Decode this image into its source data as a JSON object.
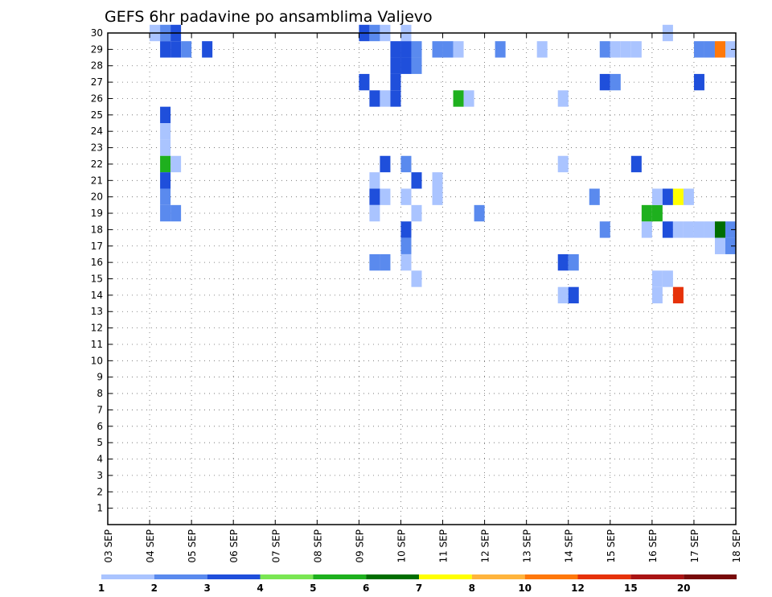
{
  "chart_data": {
    "type": "heatmap",
    "title": "GEFS 6hr padavine po ansamblima Valjevo",
    "xlabel": "",
    "ylabel": "",
    "x_tick_labels": [
      "03 SEP",
      "04 SEP",
      "05 SEP",
      "06 SEP",
      "07 SEP",
      "08 SEP",
      "09 SEP",
      "10 SEP",
      "11 SEP",
      "12 SEP",
      "13 SEP",
      "14 SEP",
      "15 SEP",
      "16 SEP",
      "17 SEP",
      "18 SEP"
    ],
    "x_range_days": [
      3,
      18
    ],
    "x_step": "6hr",
    "y_tick_labels": [
      "1",
      "2",
      "3",
      "4",
      "5",
      "6",
      "7",
      "8",
      "9",
      "10",
      "11",
      "12",
      "13",
      "14",
      "15",
      "16",
      "17",
      "18",
      "19",
      "20",
      "21",
      "22",
      "23",
      "24",
      "25",
      "26",
      "27",
      "28",
      "29",
      "30"
    ],
    "y_range": [
      0,
      30
    ],
    "grid": true,
    "colorbar": {
      "labels": [
        "1",
        "2",
        "3",
        "4",
        "5",
        "6",
        "7",
        "8",
        "10",
        "12",
        "15",
        "20"
      ],
      "colors": [
        "#aac4ff",
        "#5a8aee",
        "#1f4fdb",
        "#7ae653",
        "#1eb01e",
        "#006e00",
        "#ffff00",
        "#ffb43c",
        "#ff780a",
        "#e6320a",
        "#aa1414",
        "#780a0a"
      ]
    },
    "cells": [
      {
        "day": 4.125,
        "member": 30,
        "level": 1
      },
      {
        "day": 4.375,
        "member": 30,
        "level": 2
      },
      {
        "day": 4.625,
        "member": 30,
        "level": 3
      },
      {
        "day": 9.125,
        "member": 30,
        "level": 3
      },
      {
        "day": 9.375,
        "member": 30,
        "level": 2
      },
      {
        "day": 9.625,
        "member": 30,
        "level": 1
      },
      {
        "day": 10.125,
        "member": 30,
        "level": 1
      },
      {
        "day": 16.375,
        "member": 30,
        "level": 1
      },
      {
        "day": 4.375,
        "member": 29,
        "level": 3
      },
      {
        "day": 4.625,
        "member": 29,
        "level": 3
      },
      {
        "day": 4.875,
        "member": 29,
        "level": 2
      },
      {
        "day": 5.375,
        "member": 29,
        "level": 3
      },
      {
        "day": 9.875,
        "member": 29,
        "level": 3
      },
      {
        "day": 10.125,
        "member": 29,
        "level": 3
      },
      {
        "day": 10.375,
        "member": 29,
        "level": 2
      },
      {
        "day": 10.875,
        "member": 29,
        "level": 2
      },
      {
        "day": 11.125,
        "member": 29,
        "level": 2
      },
      {
        "day": 11.375,
        "member": 29,
        "level": 1
      },
      {
        "day": 12.375,
        "member": 29,
        "level": 2
      },
      {
        "day": 13.375,
        "member": 29,
        "level": 1
      },
      {
        "day": 14.875,
        "member": 29,
        "level": 2
      },
      {
        "day": 15.125,
        "member": 29,
        "level": 1
      },
      {
        "day": 15.375,
        "member": 29,
        "level": 1
      },
      {
        "day": 15.625,
        "member": 29,
        "level": 1
      },
      {
        "day": 17.125,
        "member": 29,
        "level": 2
      },
      {
        "day": 17.375,
        "member": 29,
        "level": 2
      },
      {
        "day": 17.625,
        "member": 29,
        "level": 9
      },
      {
        "day": 17.875,
        "member": 29,
        "level": 1
      },
      {
        "day": 9.875,
        "member": 28,
        "level": 3
      },
      {
        "day": 10.125,
        "member": 28,
        "level": 3
      },
      {
        "day": 10.375,
        "member": 28,
        "level": 2
      },
      {
        "day": 9.125,
        "member": 27,
        "level": 3
      },
      {
        "day": 9.875,
        "member": 27,
        "level": 3
      },
      {
        "day": 14.875,
        "member": 27,
        "level": 3
      },
      {
        "day": 15.125,
        "member": 27,
        "level": 2
      },
      {
        "day": 17.125,
        "member": 27,
        "level": 3
      },
      {
        "day": 9.375,
        "member": 26,
        "level": 3
      },
      {
        "day": 9.625,
        "member": 26,
        "level": 1
      },
      {
        "day": 9.875,
        "member": 26,
        "level": 3
      },
      {
        "day": 11.375,
        "member": 26,
        "level": 5
      },
      {
        "day": 11.625,
        "member": 26,
        "level": 1
      },
      {
        "day": 13.875,
        "member": 26,
        "level": 1
      },
      {
        "day": 4.375,
        "member": 25,
        "level": 3
      },
      {
        "day": 4.375,
        "member": 24,
        "level": 1
      },
      {
        "day": 4.375,
        "member": 23,
        "level": 1
      },
      {
        "day": 4.375,
        "member": 22,
        "level": 5
      },
      {
        "day": 4.625,
        "member": 22,
        "level": 1
      },
      {
        "day": 13.875,
        "member": 22,
        "level": 1
      },
      {
        "day": 9.625,
        "member": 22,
        "level": 3
      },
      {
        "day": 10.125,
        "member": 22,
        "level": 2
      },
      {
        "day": 15.625,
        "member": 22,
        "level": 3
      },
      {
        "day": 4.375,
        "member": 21,
        "level": 3
      },
      {
        "day": 4.375,
        "member": 20,
        "level": 2
      },
      {
        "day": 9.375,
        "member": 21,
        "level": 1
      },
      {
        "day": 10.375,
        "member": 21,
        "level": 3
      },
      {
        "day": 10.875,
        "member": 21,
        "level": 1
      },
      {
        "day": 10.875,
        "member": 20,
        "level": 1
      },
      {
        "day": 9.375,
        "member": 20,
        "level": 3
      },
      {
        "day": 9.625,
        "member": 20,
        "level": 1
      },
      {
        "day": 10.125,
        "member": 20,
        "level": 1
      },
      {
        "day": 10.125,
        "member": 18,
        "level": 3
      },
      {
        "day": 10.125,
        "member": 17,
        "level": 2
      },
      {
        "day": 10.125,
        "member": 16,
        "level": 1
      },
      {
        "day": 13.875,
        "member": 16,
        "level": 3
      },
      {
        "day": 14.125,
        "member": 16,
        "level": 2
      },
      {
        "day": 14.875,
        "member": 18,
        "level": 2
      },
      {
        "day": 15.875,
        "member": 18,
        "level": 1
      },
      {
        "day": 15.875,
        "member": 19,
        "level": 5
      },
      {
        "day": 16.125,
        "member": 19,
        "level": 5
      },
      {
        "day": 16.125,
        "member": 20,
        "level": 1
      },
      {
        "day": 16.375,
        "member": 20,
        "level": 3
      },
      {
        "day": 16.625,
        "member": 20,
        "level": 7
      },
      {
        "day": 16.875,
        "member": 20,
        "level": 1
      },
      {
        "day": 14.625,
        "member": 20,
        "level": 2
      },
      {
        "day": 4.625,
        "member": 19,
        "level": 2
      },
      {
        "day": 4.375,
        "member": 19,
        "level": 2
      },
      {
        "day": 9.375,
        "member": 19,
        "level": 1
      },
      {
        "day": 10.375,
        "member": 19,
        "level": 1
      },
      {
        "day": 16.375,
        "member": 18,
        "level": 3
      },
      {
        "day": 16.625,
        "member": 18,
        "level": 1
      },
      {
        "day": 16.875,
        "member": 18,
        "level": 1
      },
      {
        "day": 17.125,
        "member": 18,
        "level": 1
      },
      {
        "day": 17.375,
        "member": 18,
        "level": 1
      },
      {
        "day": 17.625,
        "member": 18,
        "level": 6
      },
      {
        "day": 17.875,
        "member": 18,
        "level": 2
      },
      {
        "day": 11.875,
        "member": 19,
        "level": 2
      },
      {
        "day": 17.625,
        "member": 17,
        "level": 1
      },
      {
        "day": 17.875,
        "member": 17,
        "level": 2
      },
      {
        "day": 16.375,
        "member": 15,
        "level": 1
      },
      {
        "day": 16.125,
        "member": 15,
        "level": 1
      },
      {
        "day": 9.375,
        "member": 16,
        "level": 2
      },
      {
        "day": 9.625,
        "member": 16,
        "level": 2
      },
      {
        "day": 10.375,
        "member": 15,
        "level": 1
      },
      {
        "day": 13.875,
        "member": 14,
        "level": 1
      },
      {
        "day": 14.125,
        "member": 14,
        "level": 3
      },
      {
        "day": 16.125,
        "member": 14,
        "level": 1
      },
      {
        "day": 16.625,
        "member": 14,
        "level": 10
      }
    ]
  }
}
